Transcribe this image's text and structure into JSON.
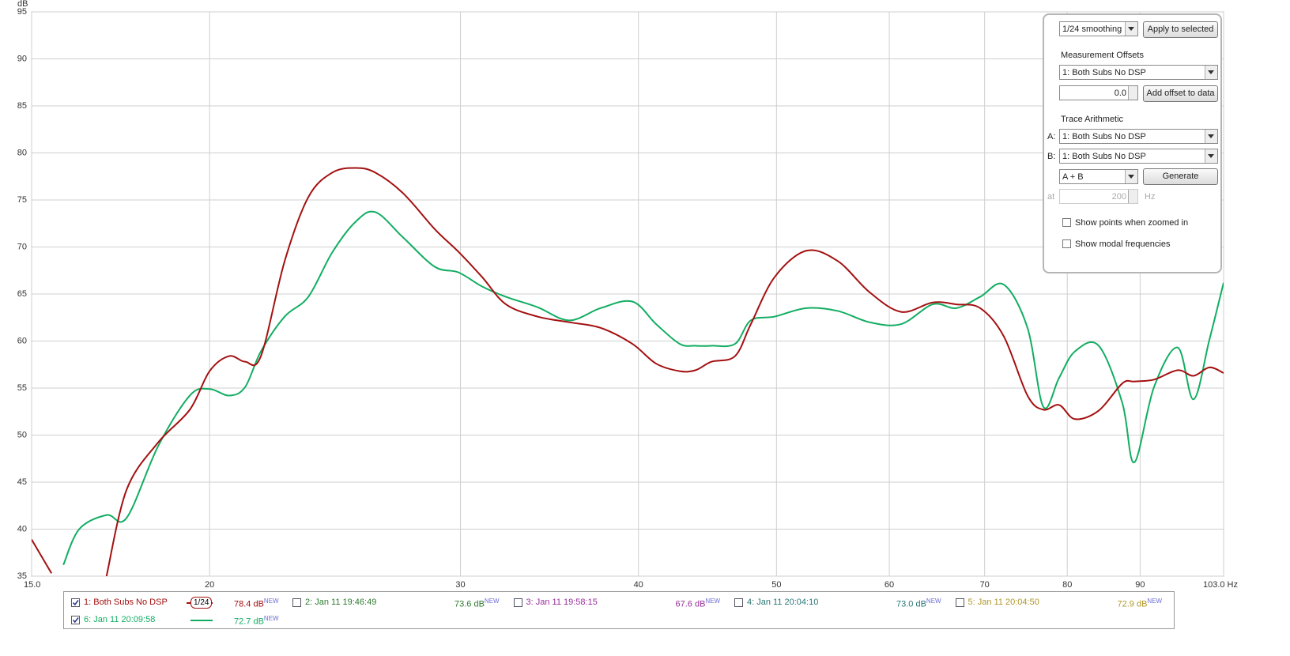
{
  "chart_data": {
    "type": "line",
    "y_label": "dB",
    "log_x": true,
    "grid": true,
    "xlim": [
      15.0,
      103.0
    ],
    "ylim": [
      35,
      95
    ],
    "xticks": [
      {
        "value": 15.0,
        "label": "15.0"
      },
      20,
      30,
      40,
      50,
      60,
      70,
      80,
      90,
      {
        "value": 103.0,
        "label": "103.0 Hz"
      }
    ],
    "yticks": [
      35,
      40,
      45,
      50,
      55,
      60,
      65,
      70,
      75,
      80,
      85,
      90,
      95
    ],
    "x": [
      15.0,
      15.49,
      15.79,
      16.2,
      16.93,
      17.49,
      18.4,
      19.37,
      20.0,
      20.64,
      21.18,
      21.73,
      22.58,
      23.46,
      24.38,
      25.33,
      26.15,
      27.35,
      28.78,
      29.9,
      31.07,
      32.29,
      33.98,
      35.76,
      37.63,
      39.61,
      41.16,
      42.76,
      43.87,
      45.01,
      46.76,
      47.97,
      49.85,
      52.46,
      55.21,
      58.11,
      61.16,
      64.36,
      66.87,
      69.49,
      72.2,
      75.02,
      76.97,
      78.96,
      81.0,
      84.17,
      87.45,
      89.15,
      92.04,
      95.64,
      98.11,
      100.65,
      103.0
    ],
    "series": [
      {
        "name": "1: Both Subs No DSP",
        "color": "#a31010",
        "level": "78.4 dB",
        "values": [
          38.9,
          35.3,
          null,
          null,
          35.0,
          44.2,
          49.2,
          52.7,
          56.8,
          58.4,
          57.8,
          58.4,
          68.5,
          75.3,
          77.9,
          78.4,
          77.9,
          75.7,
          71.9,
          69.5,
          66.8,
          63.9,
          62.6,
          62.0,
          61.4,
          59.7,
          57.6,
          56.8,
          56.9,
          57.8,
          58.4,
          61.8,
          66.8,
          69.6,
          68.5,
          65.2,
          63.1,
          64.1,
          63.9,
          63.5,
          60.5,
          54.2,
          52.7,
          53.2,
          51.7,
          52.6,
          55.5,
          55.7,
          55.9,
          56.9,
          56.3,
          57.2,
          56.6
        ]
      },
      {
        "name": "6: Jan 11 20:09:58",
        "color": "#12ad62",
        "level": "72.7 dB",
        "values": [
          null,
          null,
          36.2,
          40.0,
          41.5,
          41.2,
          48.8,
          54.2,
          54.9,
          54.2,
          55.1,
          58.9,
          62.6,
          64.7,
          69.4,
          72.7,
          73.7,
          71.0,
          67.9,
          67.3,
          65.8,
          64.7,
          63.6,
          62.2,
          63.5,
          64.2,
          61.8,
          59.7,
          59.5,
          59.5,
          59.7,
          62.2,
          62.6,
          63.5,
          63.2,
          62.0,
          61.8,
          63.9,
          63.5,
          64.7,
          66.0,
          61.4,
          53.0,
          56.1,
          58.9,
          59.5,
          53.4,
          47.1,
          55.1,
          59.3,
          53.8,
          60.1,
          66.2
        ]
      }
    ]
  },
  "legend": {
    "new_badge": "NEW",
    "smoothing_icon": "1/24",
    "others": [
      {
        "name": "2: Jan 11 19:46:49",
        "level": "73.6 dB",
        "color": "#2f7a2f"
      },
      {
        "name": "3: Jan 11 19:58:15",
        "level": "67.6 dB",
        "color": "#9a2f9a"
      },
      {
        "name": "4: Jan 11 20:04:10",
        "level": "73.0 dB",
        "color": "#2a7575"
      },
      {
        "name": "5: Jan 11 20:04:50",
        "level": "72.9 dB",
        "color": "#b0962a"
      }
    ]
  },
  "controls": {
    "smoothing": "1/24 smoothing",
    "apply_button": "Apply to selected",
    "offsets_heading": "Measurement Offsets",
    "offset_measurement": "1: Both Subs No DSP",
    "offset_value": "0.0",
    "add_offset_button": "Add offset to data",
    "arithmetic_heading": "Trace Arithmetic",
    "a_label": "A:",
    "a_measurement": "1: Both Subs No DSP",
    "b_label": "B:",
    "b_measurement": "1: Both Subs No DSP",
    "operation": "A + B",
    "generate_button": "Generate",
    "at_label": "at",
    "at_value": "200",
    "hz_label": "Hz",
    "show_points": "Show points when zoomed in",
    "show_modal": "Show modal frequencies"
  }
}
